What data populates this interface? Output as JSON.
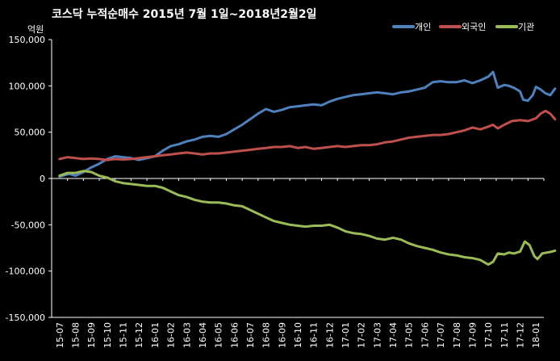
{
  "chart_data": {
    "type": "line",
    "title": "코스닥 누적순매수 2015년 7월 1일~2018년2월2일",
    "ylabel": "억원",
    "ylim": [
      -150000,
      150000
    ],
    "yticks": [
      150000,
      100000,
      50000,
      0,
      -50000,
      -100000,
      -150000
    ],
    "ytick_labels": [
      "150,000",
      "100,000",
      "50,000",
      "0",
      "-50,000",
      "-100,000",
      "-150,000"
    ],
    "xlabels": [
      "15-07",
      "15-08",
      "15-09",
      "15-10",
      "15-11",
      "15-12",
      "16-01",
      "16-02",
      "16-03",
      "16-04",
      "16-05",
      "16-06",
      "16-07",
      "16-08",
      "16-09",
      "16-10",
      "16-11",
      "16-12",
      "17-01",
      "17-02",
      "17-03",
      "17-04",
      "17-05",
      "17-06",
      "17-07",
      "17-08",
      "17-09",
      "17-10",
      "17-11",
      "17-12",
      "18-01"
    ],
    "grid": false,
    "legend_position": "top-right",
    "series": [
      {
        "name": "개인",
        "color": "#4f81bd",
        "x": [
          0,
          0.6,
          1,
          1.5,
          2,
          2.5,
          3,
          3.5,
          4,
          4.5,
          5,
          5.5,
          6,
          6.5,
          7,
          7.5,
          8,
          8.5,
          9,
          9.5,
          10,
          10.5,
          11,
          11.5,
          12,
          12.5,
          13,
          13.5,
          14,
          14.5,
          15,
          15.5,
          16,
          16.5,
          17,
          17.5,
          18,
          18.5,
          19,
          19.5,
          20,
          20.5,
          21,
          21.5,
          22,
          22.5,
          23,
          23.5,
          24,
          24.5,
          25,
          25.5,
          26,
          26.5,
          27,
          27.3,
          27.6,
          28,
          28.3,
          28.6,
          29,
          29.2,
          29.5,
          29.8,
          30,
          30.3,
          30.6,
          30.9,
          31.2
        ],
        "values": [
          2000,
          5000,
          3000,
          7000,
          12000,
          16000,
          21000,
          24000,
          23000,
          22000,
          20000,
          22000,
          24000,
          30000,
          35000,
          37000,
          40000,
          42000,
          45000,
          46000,
          45000,
          48000,
          53000,
          58000,
          64000,
          70000,
          75000,
          72000,
          74000,
          77000,
          78000,
          79000,
          80000,
          79000,
          83000,
          86000,
          88000,
          90000,
          91000,
          92000,
          93000,
          92000,
          91000,
          93000,
          94000,
          96000,
          98000,
          104000,
          105000,
          104000,
          104000,
          106000,
          103000,
          106000,
          110000,
          115000,
          98000,
          101000,
          100000,
          98000,
          94000,
          85000,
          84000,
          90000,
          99000,
          96000,
          92000,
          90000,
          97000
        ]
      },
      {
        "name": "외국인",
        "color": "#c0504d",
        "x": [
          0,
          0.5,
          1,
          1.5,
          2,
          2.5,
          3,
          3.5,
          4,
          4.5,
          5,
          5.5,
          6,
          6.5,
          7,
          7.5,
          8,
          8.5,
          9,
          9.5,
          10,
          10.5,
          11,
          11.5,
          12,
          12.5,
          13,
          13.5,
          14,
          14.5,
          15,
          15.5,
          16,
          16.5,
          17,
          17.5,
          18,
          18.5,
          19,
          19.5,
          20,
          20.5,
          21,
          21.5,
          22,
          22.5,
          23,
          23.5,
          24,
          24.5,
          25,
          25.5,
          26,
          26.5,
          27,
          27.3,
          27.6,
          28,
          28.5,
          29,
          29.5,
          30,
          30.3,
          30.6,
          30.9,
          31.2
        ],
        "values": [
          21000,
          23000,
          22000,
          21000,
          21500,
          21000,
          20000,
          21000,
          20500,
          21000,
          22000,
          23000,
          24000,
          25000,
          26000,
          27000,
          28000,
          27000,
          26000,
          27000,
          27000,
          28000,
          29000,
          30000,
          31000,
          32000,
          33000,
          34000,
          34000,
          35000,
          33000,
          34000,
          32000,
          33000,
          34000,
          35000,
          34000,
          35000,
          36000,
          36000,
          37000,
          39000,
          40000,
          42000,
          44000,
          45000,
          46000,
          47000,
          47000,
          48000,
          50000,
          52000,
          55000,
          53000,
          56000,
          58000,
          54000,
          58000,
          62000,
          63000,
          62000,
          65000,
          70000,
          73000,
          70000,
          64000
        ]
      },
      {
        "name": "기관",
        "color": "#9bbb59",
        "x": [
          0,
          0.5,
          1,
          1.5,
          2,
          2.5,
          3,
          3.5,
          4,
          4.5,
          5,
          5.5,
          6,
          6.5,
          7,
          7.5,
          8,
          8.5,
          9,
          9.5,
          10,
          10.5,
          11,
          11.5,
          12,
          12.5,
          13,
          13.5,
          14,
          14.5,
          15,
          15.5,
          16,
          16.5,
          17,
          17.5,
          18,
          18.5,
          19,
          19.5,
          20,
          20.5,
          21,
          21.5,
          22,
          22.5,
          23,
          23.5,
          24,
          24.5,
          25,
          25.5,
          26,
          26.5,
          27,
          27.3,
          27.6,
          28,
          28.3,
          28.6,
          29,
          29.3,
          29.6,
          29.9,
          30.1,
          30.4,
          30.7,
          31,
          31.2
        ],
        "values": [
          3000,
          6000,
          6000,
          8000,
          7000,
          3000,
          1000,
          -3000,
          -5000,
          -6000,
          -7000,
          -8000,
          -8000,
          -10000,
          -14000,
          -18000,
          -20000,
          -23000,
          -25000,
          -26000,
          -26000,
          -27000,
          -29000,
          -30000,
          -34000,
          -38000,
          -42000,
          -46000,
          -48000,
          -50000,
          -51000,
          -52000,
          -51000,
          -51000,
          -50000,
          -53000,
          -57000,
          -59000,
          -60000,
          -62000,
          -65000,
          -66000,
          -64000,
          -66000,
          -70000,
          -73000,
          -75000,
          -77000,
          -80000,
          -82000,
          -83000,
          -85000,
          -86000,
          -88000,
          -93000,
          -90000,
          -81000,
          -82000,
          -80000,
          -81000,
          -79000,
          -68000,
          -72000,
          -84000,
          -87000,
          -81000,
          -80000,
          -79000,
          -78000
        ]
      }
    ]
  }
}
